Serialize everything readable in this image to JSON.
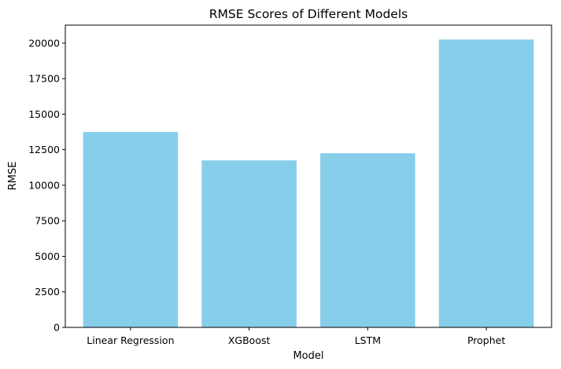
{
  "chart_data": {
    "type": "bar",
    "title": "RMSE Scores of Different Models",
    "xlabel": "Model",
    "ylabel": "RMSE",
    "categories": [
      "Linear Regression",
      "XGBoost",
      "LSTM",
      "Prophet"
    ],
    "values": [
      13750,
      11750,
      12250,
      20250
    ],
    "ylim": [
      0,
      21265
    ],
    "yticks": [
      0,
      2500,
      5000,
      7500,
      10000,
      12500,
      15000,
      17500,
      20000
    ],
    "bar_color": "#87ceeb",
    "grid": false,
    "legend": false
  }
}
